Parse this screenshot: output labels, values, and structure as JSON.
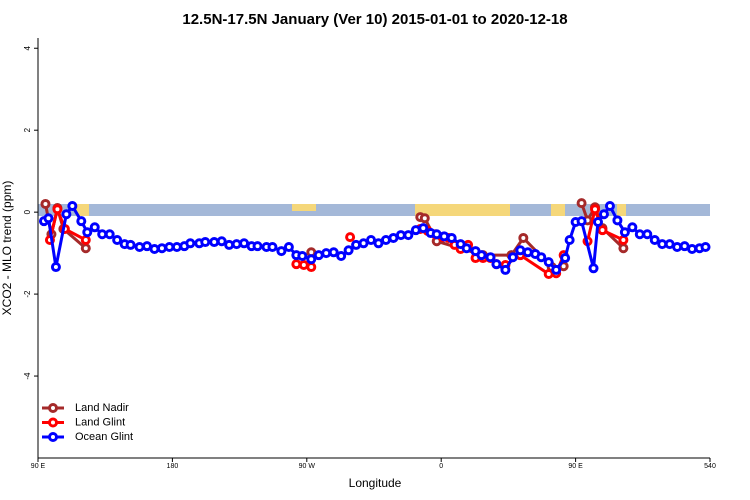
{
  "chart_data": {
    "type": "line",
    "title": "12.5N-17.5N January (Ver 10)   2015-01-01 to 2020-12-18",
    "x_label": "Longitude",
    "y_label": "XCO2 - MLO trend (ppm)",
    "xlim": [
      90,
      540
    ],
    "ylim": [
      -6,
      4.25
    ],
    "xticks": [
      {
        "value": 90,
        "label": "90 E"
      },
      180,
      {
        "value": 270,
        "label": "90 W"
      },
      {
        "value": 360,
        "label": "0"
      },
      {
        "value": 450,
        "label": "90 E"
      },
      540
    ],
    "yticks": [
      -4,
      -2,
      0,
      2,
      4
    ],
    "legend": "bottom-left",
    "series": [
      {
        "name": "Land Nadir",
        "color": "#a52a2a",
        "x": [
          95,
          99,
          103,
          107,
          122,
          190,
          273,
          310,
          346,
          349,
          357,
          388,
          407,
          415,
          434,
          442,
          448,
          454,
          458,
          463,
          468,
          482
        ],
        "values": [
          0.2,
          -0.54,
          0.1,
          -0.41,
          -0.88,
          null,
          -0.98,
          null,
          -0.12,
          -0.15,
          -0.71,
          -1.05,
          -1.05,
          -0.63,
          -1.34,
          -1.32,
          null,
          0.22,
          -0.2,
          0.12,
          -0.39,
          -0.88
        ]
      },
      {
        "name": "Land Glint",
        "color": "#ff0000",
        "x": [
          98,
          103,
          108,
          122,
          190,
          263,
          268,
          273,
          285,
          299,
          320,
          346,
          351,
          356,
          361,
          365,
          369,
          373,
          378,
          383,
          388,
          393,
          397,
          403,
          413,
          432,
          437,
          442,
          450,
          458,
          463,
          468,
          482
        ],
        "values": [
          -0.68,
          0.07,
          -0.41,
          -0.68,
          null,
          -1.27,
          -1.29,
          -1.34,
          null,
          -0.61,
          null,
          -0.41,
          -0.46,
          -0.54,
          -0.61,
          -0.63,
          -0.8,
          -0.9,
          -0.8,
          -1.12,
          -1.12,
          -1.12,
          -1.27,
          -1.29,
          -1.05,
          -1.51,
          -1.49,
          -1.05,
          null,
          -0.71,
          0.07,
          -0.44,
          -0.68
        ]
      },
      {
        "name": "Ocean Glint",
        "color": "#0000ff",
        "x": [
          94,
          97,
          102,
          109,
          113,
          119,
          123,
          128,
          133,
          138,
          143,
          148,
          152,
          158,
          163,
          168,
          173,
          178,
          183,
          188,
          192,
          198,
          202,
          208,
          213,
          218,
          223,
          228,
          233,
          237,
          243,
          247,
          253,
          258,
          263,
          267,
          273,
          278,
          283,
          288,
          293,
          298,
          303,
          308,
          313,
          318,
          323,
          328,
          333,
          338,
          343,
          348,
          353,
          357,
          362,
          367,
          373,
          377,
          383,
          387,
          393,
          397,
          403,
          408,
          413,
          418,
          423,
          427,
          432,
          437,
          443,
          446,
          450,
          454,
          462,
          465,
          469,
          473,
          478,
          483,
          488,
          493,
          498,
          503,
          508,
          513,
          518,
          523,
          528,
          533,
          537
        ],
        "values": [
          -0.22,
          -0.15,
          -1.34,
          -0.05,
          0.15,
          -0.22,
          -0.49,
          -0.37,
          -0.54,
          -0.54,
          -0.68,
          -0.78,
          -0.8,
          -0.85,
          -0.83,
          -0.9,
          -0.88,
          -0.85,
          -0.85,
          -0.83,
          -0.76,
          -0.76,
          -0.73,
          -0.73,
          -0.71,
          -0.8,
          -0.78,
          -0.76,
          -0.83,
          -0.83,
          -0.85,
          -0.85,
          -0.95,
          -0.85,
          -1.05,
          -1.07,
          -1.15,
          -1.05,
          -1.0,
          -0.98,
          -1.07,
          -0.93,
          -0.8,
          -0.76,
          -0.68,
          -0.76,
          -0.68,
          -0.63,
          -0.56,
          -0.56,
          -0.44,
          -0.39,
          -0.51,
          -0.54,
          -0.59,
          -0.63,
          -0.78,
          -0.88,
          -0.95,
          -1.05,
          -1.1,
          -1.27,
          -1.41,
          -1.1,
          -0.93,
          -0.98,
          -1.02,
          -1.1,
          -1.22,
          -1.41,
          -1.12,
          -0.68,
          -0.24,
          -0.22,
          -1.37,
          -0.24,
          -0.05,
          0.15,
          -0.2,
          -0.49,
          -0.37,
          -0.54,
          -0.54,
          -0.68,
          -0.78,
          -0.78,
          -0.85,
          -0.83,
          -0.9,
          -0.88,
          -0.85
        ]
      }
    ]
  }
}
